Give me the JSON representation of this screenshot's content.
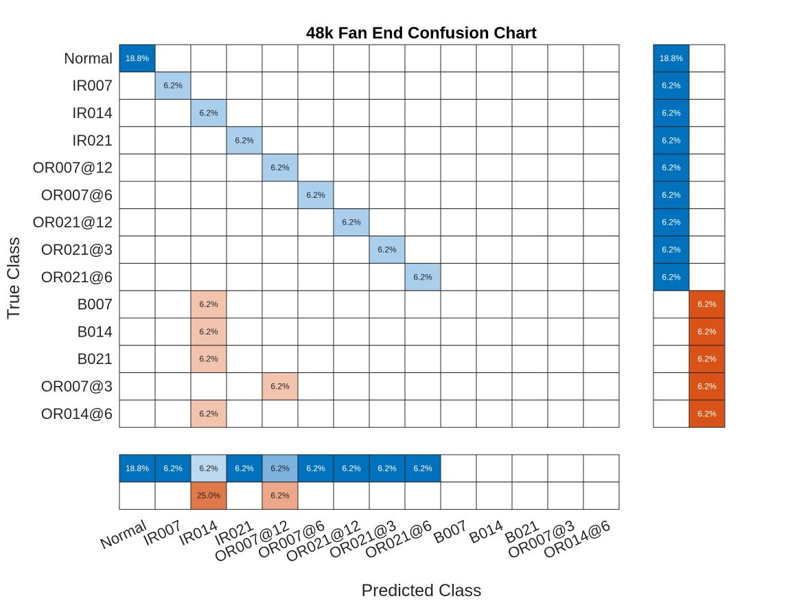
{
  "chart_data": {
    "type": "heatmap",
    "title": "48k Fan End Confusion Chart",
    "xlabel": "Predicted Class",
    "ylabel": "True Class",
    "classes": [
      "Normal",
      "IR007",
      "IR014",
      "IR021",
      "OR007@12",
      "OR007@6",
      "OR021@12",
      "OR021@3",
      "OR021@6",
      "B007",
      "B014",
      "B021",
      "OR007@3",
      "OR014@6"
    ],
    "cells": [
      {
        "row": 0,
        "col": 0,
        "value": "18.8%",
        "kind": "correct"
      },
      {
        "row": 1,
        "col": 1,
        "value": "6.2%",
        "kind": "correct"
      },
      {
        "row": 2,
        "col": 2,
        "value": "6.2%",
        "kind": "correct"
      },
      {
        "row": 3,
        "col": 3,
        "value": "6.2%",
        "kind": "correct"
      },
      {
        "row": 4,
        "col": 4,
        "value": "6.2%",
        "kind": "correct"
      },
      {
        "row": 5,
        "col": 5,
        "value": "6.2%",
        "kind": "correct"
      },
      {
        "row": 6,
        "col": 6,
        "value": "6.2%",
        "kind": "correct"
      },
      {
        "row": 7,
        "col": 7,
        "value": "6.2%",
        "kind": "correct"
      },
      {
        "row": 8,
        "col": 8,
        "value": "6.2%",
        "kind": "correct"
      },
      {
        "row": 9,
        "col": 2,
        "value": "6.2%",
        "kind": "error"
      },
      {
        "row": 10,
        "col": 2,
        "value": "6.2%",
        "kind": "error"
      },
      {
        "row": 11,
        "col": 2,
        "value": "6.2%",
        "kind": "error"
      },
      {
        "row": 12,
        "col": 4,
        "value": "6.2%",
        "kind": "error"
      },
      {
        "row": 13,
        "col": 2,
        "value": "6.2%",
        "kind": "error"
      }
    ],
    "row_summary": {
      "correct": [
        "18.8%",
        "6.2%",
        "6.2%",
        "6.2%",
        "6.2%",
        "6.2%",
        "6.2%",
        "6.2%",
        "6.2%",
        "",
        "",
        "",
        "",
        ""
      ],
      "incorrect": [
        "",
        "",
        "",
        "",
        "",
        "",
        "",
        "",
        "",
        "6.2%",
        "6.2%",
        "6.2%",
        "6.2%",
        "6.2%"
      ]
    },
    "column_summary": {
      "correct": [
        "18.8%",
        "6.2%",
        "6.2%",
        "6.2%",
        "6.2%",
        "6.2%",
        "6.2%",
        "6.2%",
        "6.2%",
        "",
        "",
        "",
        "",
        ""
      ],
      "incorrect": [
        "",
        "",
        "25.0%",
        "",
        "6.2%",
        "",
        "",
        "",
        "",
        "",
        "",
        "",
        "",
        ""
      ]
    },
    "colors": {
      "correct_dark": "#0072bd",
      "correct_light": "#a9cfec",
      "correct_pale": "#bcd9f0",
      "correct_mid": "#7bb3de",
      "error_light": "#f2c3ad",
      "error_mid": "#eda889",
      "error_dark": "#e07848",
      "error_full": "#d95319"
    }
  }
}
